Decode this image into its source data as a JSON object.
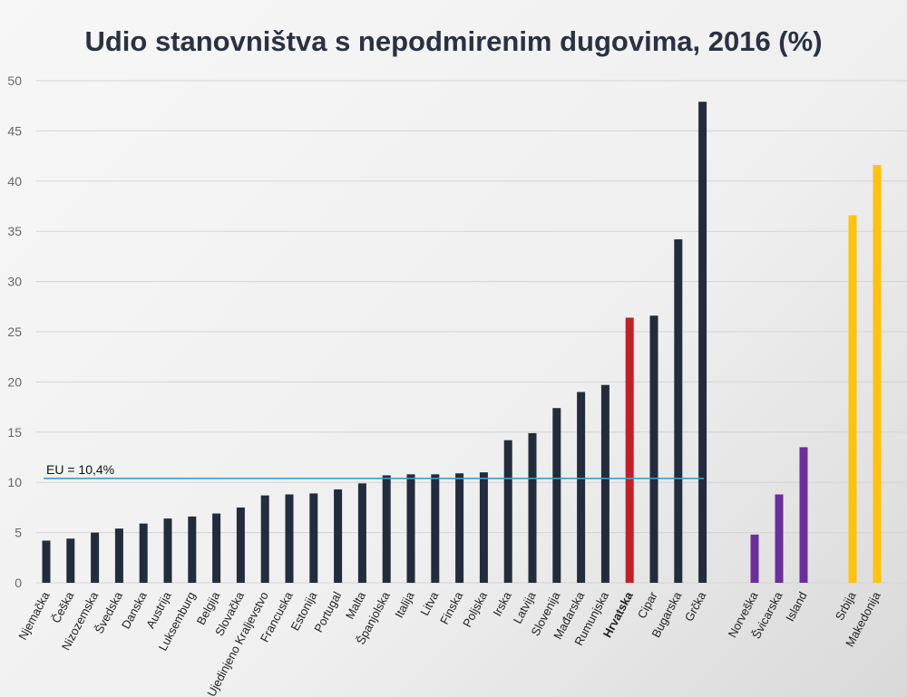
{
  "chart_data": {
    "type": "bar",
    "title": "Udio stanovništva s nepodmirenim dugovima, 2016 (%)",
    "xlabel": "",
    "ylabel": "",
    "ylim": [
      0,
      50
    ],
    "yticks": [
      "0",
      "5",
      "10",
      "15",
      "20",
      "25",
      "30",
      "35",
      "40",
      "45",
      "50"
    ],
    "grid": true,
    "categories": [
      "Njemačka",
      "Češka",
      "Nizozemska",
      "Švedska",
      "Danska",
      "Austrija",
      "Luksemburg",
      "Belgija",
      "Slovačka",
      "Ujedinjeno Kraljevstvo",
      "Francuska",
      "Estonija",
      "Portugal",
      "Malta",
      "Španjolska",
      "Italija",
      "Litva",
      "Finska",
      "Poljska",
      "Irska",
      "Latvija",
      "Slovenija",
      "Mađarska",
      "Rumunjska",
      "Hrvatska",
      "Cipar",
      "Bugarska",
      "Grčka",
      "Norveška",
      "Švicarska",
      "Island",
      "Srbija",
      "Makedonija"
    ],
    "values": [
      4.2,
      4.4,
      5.0,
      5.4,
      5.9,
      6.4,
      6.6,
      6.9,
      7.5,
      8.7,
      8.8,
      8.9,
      9.3,
      9.9,
      10.7,
      10.8,
      10.8,
      10.9,
      11.0,
      14.2,
      14.9,
      17.4,
      19.0,
      19.7,
      26.4,
      26.6,
      34.2,
      47.9,
      4.8,
      8.8,
      13.5,
      36.6,
      41.6
    ],
    "groups": [
      "eu",
      "eu",
      "eu",
      "eu",
      "eu",
      "eu",
      "eu",
      "eu",
      "eu",
      "eu",
      "eu",
      "eu",
      "eu",
      "eu",
      "eu",
      "eu",
      "eu",
      "eu",
      "eu",
      "eu",
      "eu",
      "eu",
      "eu",
      "eu",
      "highlight",
      "eu",
      "eu",
      "eu",
      "efta",
      "efta",
      "efta",
      "candidate",
      "candidate"
    ],
    "reference_line": {
      "label": "EU = 10,4%",
      "value": 10.4
    },
    "colors": {
      "eu": "#232c3d",
      "highlight": "#c0202a",
      "efta": "#6a2f98",
      "candidate": "#ffc20e",
      "reference": "#3a9fc8",
      "grid": "#d4d4d4"
    }
  }
}
